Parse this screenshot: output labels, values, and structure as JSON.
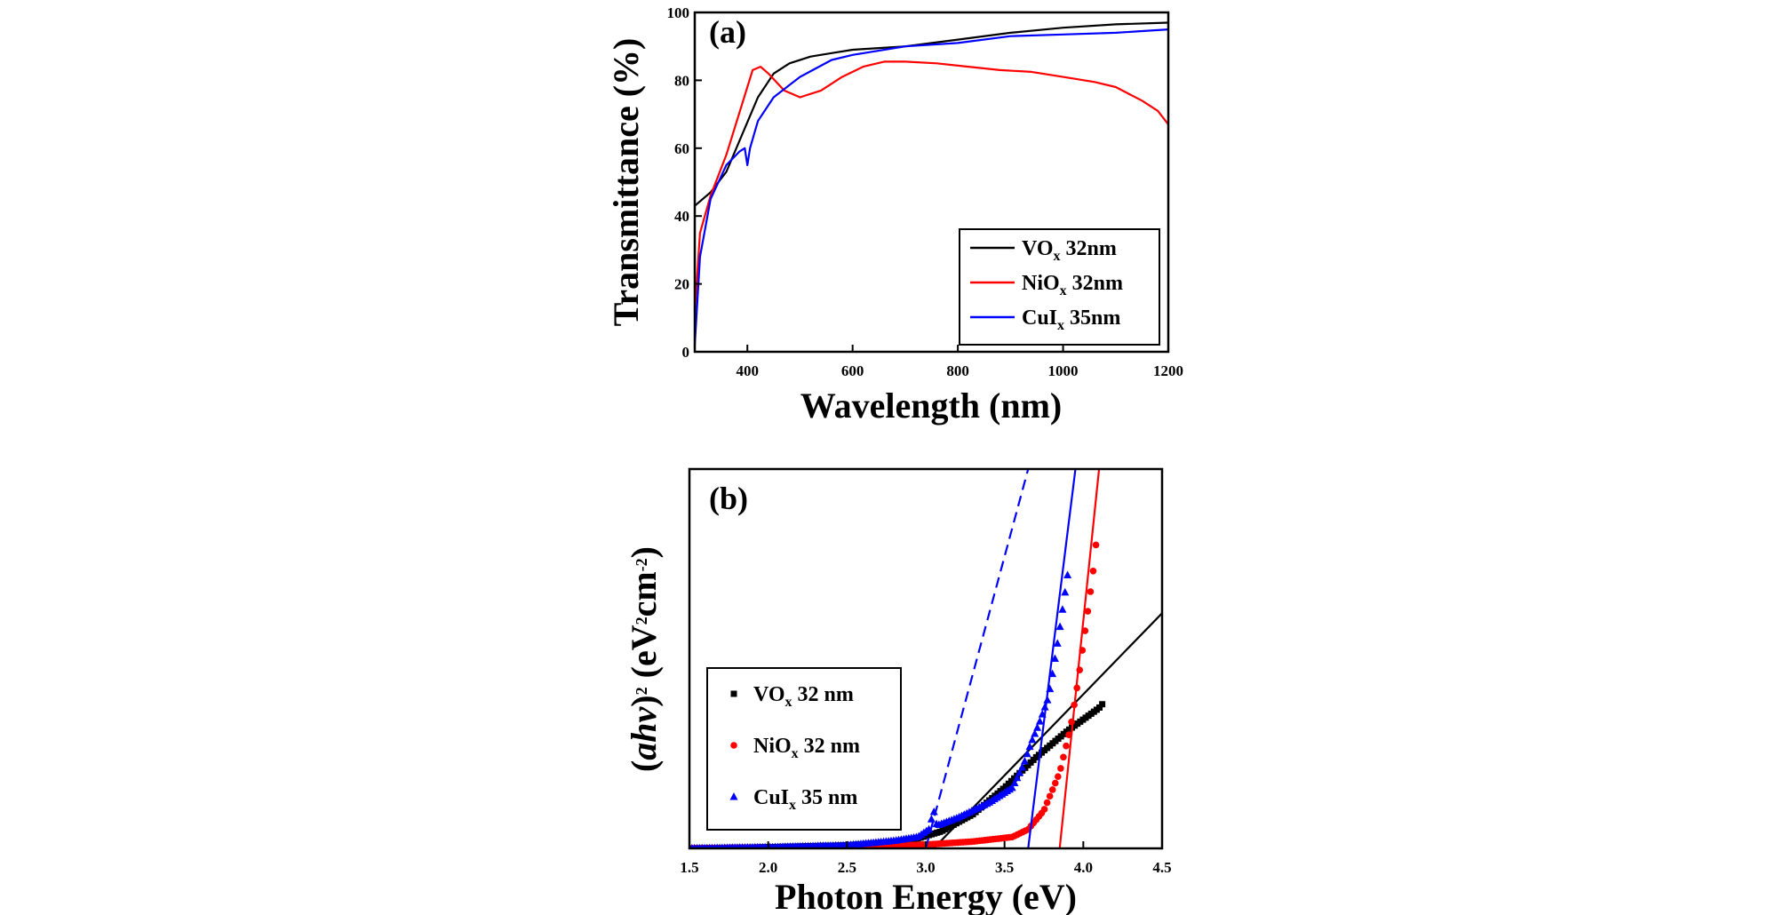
{
  "chart_data": [
    {
      "type": "line",
      "panel_label": "(a)",
      "xlabel": "Wavelength (nm)",
      "ylabel": "Transmittance (%)",
      "xlim": [
        300,
        1200
      ],
      "ylim": [
        0,
        100
      ],
      "xticks": [
        "400",
        "600",
        "800",
        "1000",
        "1200"
      ],
      "yticks": [
        "0",
        "20",
        "40",
        "60",
        "80",
        "100"
      ],
      "legend_position": "bottom-right",
      "series": [
        {
          "name": "VOx 32nm",
          "label_base": "VO",
          "label_sub": "x",
          "label_rest": " 32nm",
          "color": "#000000",
          "points": [
            [
              300,
              43
            ],
            [
              330,
              47
            ],
            [
              360,
              53
            ],
            [
              390,
              64
            ],
            [
              420,
              75
            ],
            [
              450,
              82
            ],
            [
              480,
              85
            ],
            [
              520,
              87
            ],
            [
              560,
              88
            ],
            [
              600,
              89
            ],
            [
              650,
              89.5
            ],
            [
              700,
              90
            ],
            [
              800,
              92
            ],
            [
              900,
              94
            ],
            [
              1000,
              95.5
            ],
            [
              1100,
              96.5
            ],
            [
              1200,
              97
            ]
          ]
        },
        {
          "name": "NiOx 32nm",
          "label_base": "NiO",
          "label_sub": "x",
          "label_rest": " 32nm",
          "color": "#ff0000",
          "points": [
            [
              300,
              12
            ],
            [
              310,
              35
            ],
            [
              330,
              46
            ],
            [
              360,
              58
            ],
            [
              390,
              73
            ],
            [
              410,
              83
            ],
            [
              425,
              84
            ],
            [
              440,
              82
            ],
            [
              470,
              77
            ],
            [
              500,
              75
            ],
            [
              540,
              77
            ],
            [
              580,
              81
            ],
            [
              620,
              84
            ],
            [
              660,
              85.5
            ],
            [
              700,
              85.5
            ],
            [
              760,
              85
            ],
            [
              820,
              84
            ],
            [
              880,
              83
            ],
            [
              940,
              82.5
            ],
            [
              1000,
              81
            ],
            [
              1060,
              79.5
            ],
            [
              1100,
              78
            ],
            [
              1150,
              74
            ],
            [
              1180,
              71
            ],
            [
              1200,
              67
            ]
          ]
        },
        {
          "name": "CuIx 35nm",
          "label_base": "CuI",
          "label_sub": "x",
          "label_rest": " 35nm",
          "color": "#0000ff",
          "points": [
            [
              300,
              2
            ],
            [
              310,
              28
            ],
            [
              330,
              45
            ],
            [
              360,
              55
            ],
            [
              385,
              59
            ],
            [
              395,
              60
            ],
            [
              400,
              55
            ],
            [
              405,
              60
            ],
            [
              420,
              68
            ],
            [
              450,
              75
            ],
            [
              500,
              81
            ],
            [
              560,
              86
            ],
            [
              600,
              87.5
            ],
            [
              700,
              90
            ],
            [
              800,
              91
            ],
            [
              900,
              93
            ],
            [
              1000,
              93.5
            ],
            [
              1100,
              94
            ],
            [
              1200,
              95
            ]
          ]
        }
      ]
    },
    {
      "type": "scatter",
      "panel_label": "(b)",
      "xlabel": "Photon Energy (eV)",
      "ylabel": "(αhν)2 (eV2cm-2)",
      "ylabel_parts": {
        "open": "(",
        "italic": "ahv",
        "close": ")",
        "sup": "2",
        "rest1": " (eV",
        "sup2": "2",
        "rest2": "cm",
        "sup3": "-2",
        "end": ")"
      },
      "xlim": [
        1.5,
        4.5
      ],
      "ylim": [
        0,
        1
      ],
      "xticks": [
        "1.5",
        "2.0",
        "2.5",
        "3.0",
        "3.5",
        "4.0",
        "4.5"
      ],
      "y_tick_labels": "none",
      "legend_position": "bottom-left",
      "series": [
        {
          "name": "VOx 32 nm",
          "label_base": "VO",
          "label_sub": "x",
          "label_rest": " 32 nm",
          "color": "#000000",
          "marker": "square",
          "curve": [
            [
              1.5,
              0
            ],
            [
              2.0,
              0.003
            ],
            [
              2.5,
              0.008
            ],
            [
              2.9,
              0.02
            ],
            [
              3.1,
              0.045
            ],
            [
              3.3,
              0.09
            ],
            [
              3.5,
              0.16
            ],
            [
              3.7,
              0.24
            ],
            [
              3.9,
              0.31
            ],
            [
              4.1,
              0.37
            ],
            [
              4.12,
              0.38
            ]
          ],
          "fit": [
            [
              3.05,
              0
            ],
            [
              4.5,
              0.62
            ]
          ]
        },
        {
          "name": "NiOx 32 nm",
          "label_base": "NiO",
          "label_sub": "x",
          "label_rest": " 32 nm",
          "color": "#ff0000",
          "marker": "circle",
          "curve": [
            [
              1.5,
              0
            ],
            [
              2.5,
              0.003
            ],
            [
              3.0,
              0.01
            ],
            [
              3.3,
              0.018
            ],
            [
              3.55,
              0.03
            ],
            [
              3.65,
              0.05
            ],
            [
              3.75,
              0.1
            ],
            [
              3.85,
              0.2
            ],
            [
              3.92,
              0.32
            ],
            [
              3.97,
              0.45
            ],
            [
              4.02,
              0.6
            ],
            [
              4.06,
              0.72
            ],
            [
              4.08,
              0.8
            ]
          ],
          "fit": [
            [
              3.85,
              0
            ],
            [
              4.1,
              1.0
            ]
          ]
        },
        {
          "name": "CuIx 35 nm",
          "label_base": "CuI",
          "label_sub": "x",
          "label_rest": " 35 nm",
          "color": "#0000ff",
          "marker": "triangle",
          "curve": [
            [
              1.5,
              0
            ],
            [
              2.0,
              0.003
            ],
            [
              2.5,
              0.008
            ],
            [
              2.8,
              0.02
            ],
            [
              2.95,
              0.03
            ],
            [
              3.02,
              0.05
            ],
            [
              3.05,
              0.1
            ],
            [
              3.07,
              0.06
            ],
            [
              3.2,
              0.08
            ],
            [
              3.4,
              0.12
            ],
            [
              3.55,
              0.16
            ],
            [
              3.62,
              0.22
            ],
            [
              3.67,
              0.28
            ],
            [
              3.72,
              0.33
            ],
            [
              3.78,
              0.4
            ],
            [
              3.84,
              0.55
            ],
            [
              3.9,
              0.72
            ]
          ],
          "fit": [
            [
              3.65,
              0
            ],
            [
              3.95,
              1.0
            ]
          ],
          "dashed_fit": [
            [
              3.0,
              0
            ],
            [
              3.65,
              1.0
            ]
          ]
        }
      ]
    }
  ]
}
